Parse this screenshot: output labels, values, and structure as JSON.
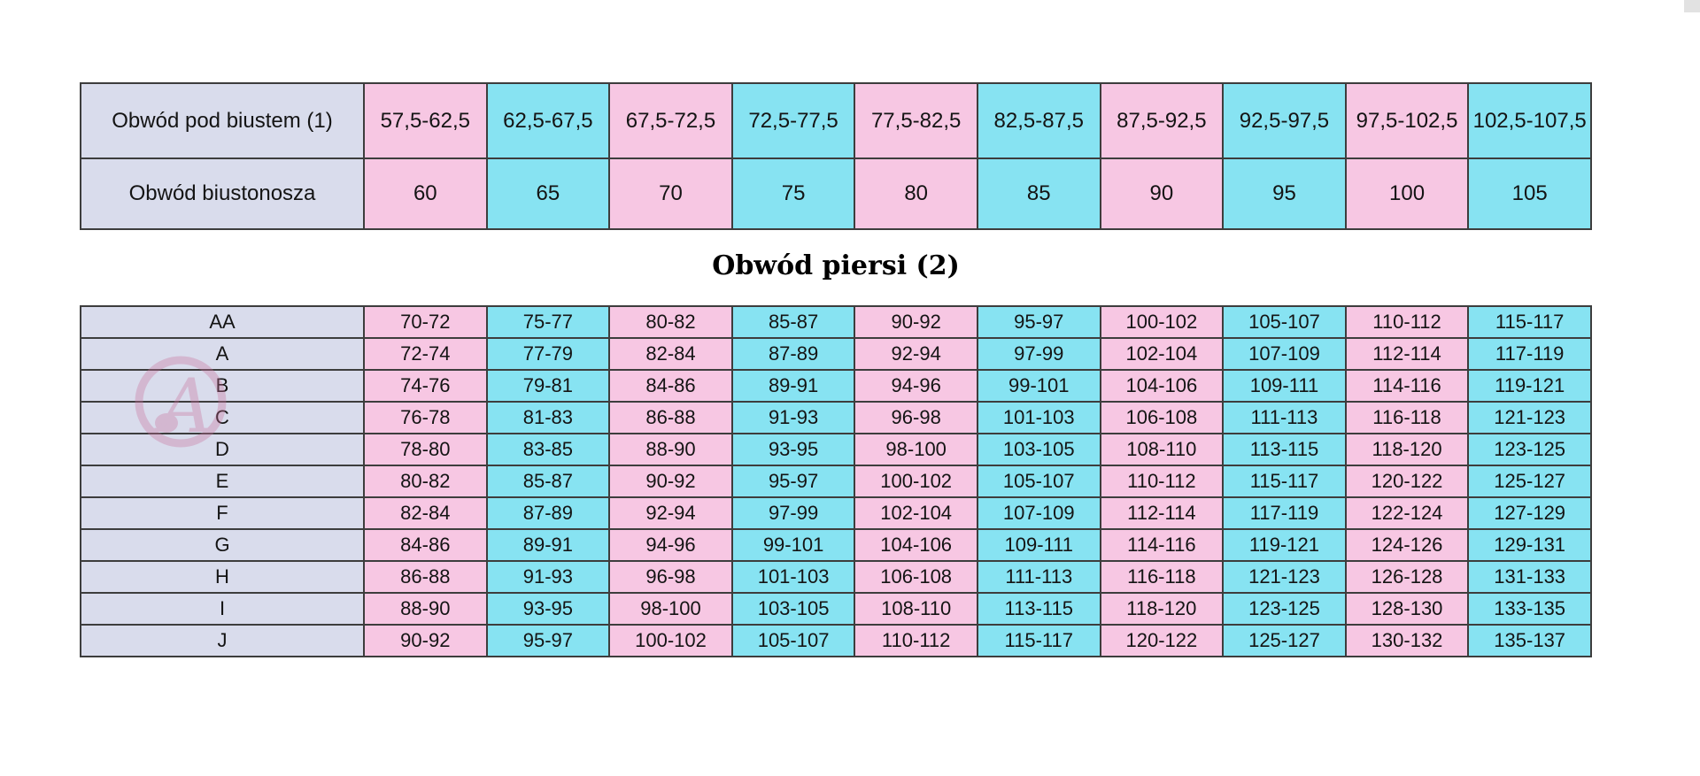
{
  "colors": {
    "pink": "#f7c7e3",
    "cyan": "#87e3f2",
    "lavender": "#d9dcec",
    "border": "#3d3d3d",
    "fragment": "#e2e2e2",
    "watermark": "#c9719c"
  },
  "watermark": {
    "letter": "A"
  },
  "chart_data": [
    {
      "type": "table",
      "name": "band-size-table",
      "rows": [
        {
          "label": "Obwód pod biustem (1)",
          "values": [
            "57,5-62,5",
            "62,5-67,5",
            "67,5-72,5",
            "72,5-77,5",
            "77,5-82,5",
            "82,5-87,5",
            "87,5-92,5",
            "92,5-97,5",
            "97,5-102,5",
            "102,5-107,5"
          ]
        },
        {
          "label": "Obwód biustonosza",
          "values": [
            "60",
            "65",
            "70",
            "75",
            "80",
            "85",
            "90",
            "95",
            "100",
            "105"
          ]
        }
      ]
    },
    {
      "type": "table",
      "name": "cup-size-table",
      "title": "Obwód piersi (2)",
      "rows": [
        {
          "label": "AA",
          "values": [
            "70-72",
            "75-77",
            "80-82",
            "85-87",
            "90-92",
            "95-97",
            "100-102",
            "105-107",
            "110-112",
            "115-117"
          ]
        },
        {
          "label": "A",
          "values": [
            "72-74",
            "77-79",
            "82-84",
            "87-89",
            "92-94",
            "97-99",
            "102-104",
            "107-109",
            "112-114",
            "117-119"
          ]
        },
        {
          "label": "B",
          "values": [
            "74-76",
            "79-81",
            "84-86",
            "89-91",
            "94-96",
            "99-101",
            "104-106",
            "109-111",
            "114-116",
            "119-121"
          ]
        },
        {
          "label": "C",
          "values": [
            "76-78",
            "81-83",
            "86-88",
            "91-93",
            "96-98",
            "101-103",
            "106-108",
            "111-113",
            "116-118",
            "121-123"
          ]
        },
        {
          "label": "D",
          "values": [
            "78-80",
            "83-85",
            "88-90",
            "93-95",
            "98-100",
            "103-105",
            "108-110",
            "113-115",
            "118-120",
            "123-125"
          ]
        },
        {
          "label": "E",
          "values": [
            "80-82",
            "85-87",
            "90-92",
            "95-97",
            "100-102",
            "105-107",
            "110-112",
            "115-117",
            "120-122",
            "125-127"
          ]
        },
        {
          "label": "F",
          "values": [
            "82-84",
            "87-89",
            "92-94",
            "97-99",
            "102-104",
            "107-109",
            "112-114",
            "117-119",
            "122-124",
            "127-129"
          ]
        },
        {
          "label": "G",
          "values": [
            "84-86",
            "89-91",
            "94-96",
            "99-101",
            "104-106",
            "109-111",
            "114-116",
            "119-121",
            "124-126",
            "129-131"
          ]
        },
        {
          "label": "H",
          "values": [
            "86-88",
            "91-93",
            "96-98",
            "101-103",
            "106-108",
            "111-113",
            "116-118",
            "121-123",
            "126-128",
            "131-133"
          ]
        },
        {
          "label": "I",
          "values": [
            "88-90",
            "93-95",
            "98-100",
            "103-105",
            "108-110",
            "113-115",
            "118-120",
            "123-125",
            "128-130",
            "133-135"
          ]
        },
        {
          "label": "J",
          "values": [
            "90-92",
            "95-97",
            "100-102",
            "105-107",
            "110-112",
            "115-117",
            "120-122",
            "125-127",
            "130-132",
            "135-137"
          ]
        }
      ]
    }
  ]
}
